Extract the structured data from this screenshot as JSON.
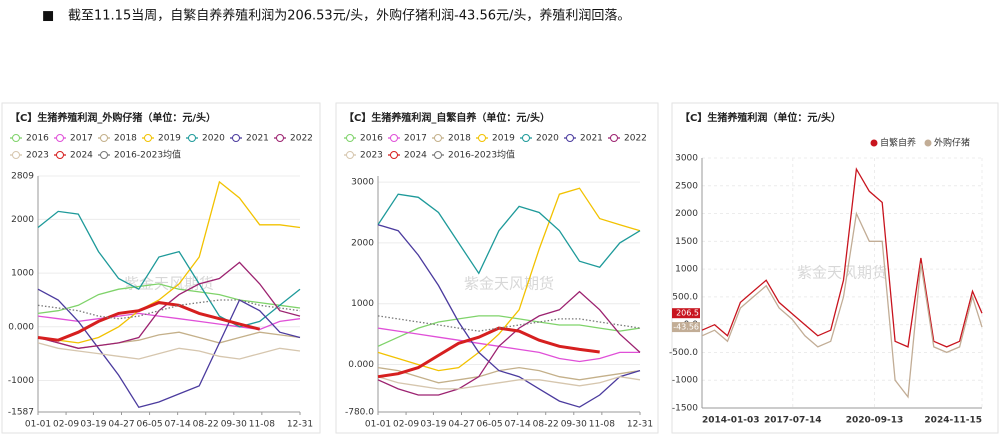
{
  "header": {
    "bullet": "■",
    "text": "截至11.15当周，自繁自养养殖利润为206.53元/头，外购仔猪利润-43.56元/头，养殖利润回落。"
  },
  "chart_data": [
    {
      "type": "line",
      "title": "【C】生猪养殖利润_外购仔猪（单位：元/头）",
      "watermark": "紫金天风期货",
      "grid": true,
      "x": [
        1,
        29,
        57,
        85,
        113,
        141,
        169,
        197,
        225,
        253,
        281,
        309,
        337,
        365
      ],
      "xlim": [
        1,
        365
      ],
      "xticks": [
        {
          "value": 1,
          "label": "01-01"
        },
        {
          "value": 40,
          "label": "02-09"
        },
        {
          "value": 78,
          "label": "03-19"
        },
        {
          "value": 117,
          "label": "04-27"
        },
        {
          "value": 156,
          "label": "06-05"
        },
        {
          "value": 195,
          "label": "07-14"
        },
        {
          "value": 234,
          "label": "08-22"
        },
        {
          "value": 273,
          "label": "09-30"
        },
        {
          "value": 312,
          "label": "11-08"
        },
        {
          "value": 365,
          "label": "12-31"
        }
      ],
      "ylim": [
        -1587,
        2809
      ],
      "yticks": [
        2809,
        2000,
        1000,
        {
          "value": 0,
          "label": "0.000"
        },
        -1000,
        -1587
      ],
      "series": [
        {
          "name": "2016",
          "color": "#7fd36a",
          "values": [
            250,
            300,
            400,
            600,
            700,
            750,
            800,
            700,
            650,
            600,
            500,
            450,
            400,
            350
          ]
        },
        {
          "name": "2017",
          "color": "#e050d8",
          "values": [
            200,
            150,
            100,
            150,
            200,
            250,
            200,
            150,
            100,
            50,
            0,
            -50,
            100,
            150
          ]
        },
        {
          "name": "2018",
          "color": "#c4b08a",
          "values": [
            -200,
            -300,
            -400,
            -350,
            -300,
            -250,
            -150,
            -100,
            -200,
            -300,
            -200,
            -100,
            -150,
            -200
          ]
        },
        {
          "name": "2019",
          "color": "#f2c200",
          "values": [
            -200,
            -250,
            -300,
            -200,
            0,
            300,
            500,
            800,
            1300,
            2700,
            2400,
            1900,
            1900,
            1850
          ]
        },
        {
          "name": "2020",
          "color": "#1e9a9a",
          "values": [
            1850,
            2150,
            2100,
            1400,
            900,
            700,
            1300,
            1400,
            800,
            200,
            0,
            100,
            400,
            700
          ]
        },
        {
          "name": "2021",
          "color": "#4b3b9e",
          "values": [
            700,
            500,
            100,
            -400,
            -900,
            -1500,
            -1400,
            -1250,
            -1100,
            -300,
            500,
            300,
            -100,
            -200
          ]
        },
        {
          "name": "2022",
          "color": "#9c2270",
          "values": [
            -200,
            -300,
            -400,
            -350,
            -300,
            -200,
            300,
            600,
            800,
            900,
            1200,
            800,
            300,
            200
          ]
        },
        {
          "name": "2023",
          "color": "#d6c6ae",
          "values": [
            -300,
            -400,
            -450,
            -500,
            -550,
            -600,
            -500,
            -400,
            -450,
            -550,
            -600,
            -500,
            -400,
            -450
          ]
        },
        {
          "name": "2024",
          "color": "#d61f1f",
          "highlight": true,
          "values": [
            -200,
            -250,
            -100,
            100,
            250,
            300,
            450,
            400,
            250,
            150,
            50,
            -44,
            null,
            null
          ]
        },
        {
          "name": "2016-2023均值",
          "color": "#777777",
          "dashed": true,
          "values": [
            400,
            350,
            300,
            200,
            150,
            200,
            300,
            400,
            450,
            500,
            500,
            400,
            350,
            300
          ]
        }
      ]
    },
    {
      "type": "line",
      "title": "【C】生猪养殖利润_自繁自养（单位：元/头）",
      "watermark": "紫金天风期货",
      "grid": true,
      "x": [
        1,
        29,
        57,
        85,
        113,
        141,
        169,
        197,
        225,
        253,
        281,
        309,
        337,
        365
      ],
      "xlim": [
        1,
        365
      ],
      "xticks": [
        {
          "value": 1,
          "label": "01-01"
        },
        {
          "value": 40,
          "label": "02-09"
        },
        {
          "value": 78,
          "label": "03-19"
        },
        {
          "value": 117,
          "label": "04-27"
        },
        {
          "value": 156,
          "label": "06-05"
        },
        {
          "value": 195,
          "label": "07-14"
        },
        {
          "value": 234,
          "label": "08-22"
        },
        {
          "value": 273,
          "label": "09-30"
        },
        {
          "value": 312,
          "label": "11-08"
        },
        {
          "value": 365,
          "label": "12-31"
        }
      ],
      "ylim": [
        -780,
        3100
      ],
      "yticks": [
        3000,
        2000,
        1000,
        {
          "value": 0,
          "label": "0.000"
        },
        {
          "value": -780,
          "label": "-780.0"
        }
      ],
      "series": [
        {
          "name": "2016",
          "color": "#7fd36a",
          "values": [
            300,
            450,
            600,
            700,
            750,
            800,
            800,
            750,
            700,
            650,
            650,
            600,
            550,
            600
          ]
        },
        {
          "name": "2017",
          "color": "#e050d8",
          "values": [
            600,
            550,
            500,
            450,
            400,
            350,
            300,
            250,
            200,
            100,
            50,
            100,
            200,
            200
          ]
        },
        {
          "name": "2018",
          "color": "#c4b08a",
          "values": [
            -50,
            -100,
            -200,
            -300,
            -250,
            -200,
            -100,
            -50,
            -100,
            -200,
            -250,
            -200,
            -150,
            -100
          ]
        },
        {
          "name": "2019",
          "color": "#f2c200",
          "values": [
            200,
            100,
            0,
            -100,
            -50,
            200,
            500,
            900,
            1900,
            2800,
            2900,
            2400,
            2300,
            2200
          ]
        },
        {
          "name": "2020",
          "color": "#1e9a9a",
          "values": [
            2300,
            2800,
            2750,
            2500,
            2000,
            1500,
            2200,
            2600,
            2500,
            2200,
            1700,
            1600,
            2000,
            2200
          ]
        },
        {
          "name": "2021",
          "color": "#4b3b9e",
          "values": [
            2300,
            2200,
            1800,
            1300,
            700,
            200,
            -100,
            -200,
            -400,
            -600,
            -700,
            -500,
            -200,
            -100
          ]
        },
        {
          "name": "2022",
          "color": "#9c2270",
          "values": [
            -250,
            -400,
            -500,
            -500,
            -400,
            -200,
            300,
            600,
            800,
            900,
            1200,
            900,
            500,
            200
          ]
        },
        {
          "name": "2023",
          "color": "#d6c6ae",
          "values": [
            -200,
            -300,
            -350,
            -400,
            -400,
            -350,
            -300,
            -250,
            -250,
            -300,
            -350,
            -300,
            -200,
            -250
          ]
        },
        {
          "name": "2024",
          "color": "#d61f1f",
          "highlight": true,
          "values": [
            -200,
            -150,
            -50,
            150,
            350,
            450,
            600,
            550,
            400,
            300,
            250,
            207,
            null,
            null
          ]
        },
        {
          "name": "2016-2023均值",
          "color": "#777777",
          "dashed": true,
          "values": [
            800,
            750,
            700,
            650,
            600,
            550,
            600,
            650,
            700,
            750,
            750,
            700,
            650,
            600
          ]
        }
      ]
    },
    {
      "type": "line",
      "title": "【C】生猪养殖利润（单位：元/头）",
      "watermark": "紫金天风期货",
      "grid": true,
      "legend": "top",
      "vgrid": true,
      "x": [
        2014.01,
        2014.5,
        2015.0,
        2015.5,
        2016.0,
        2016.5,
        2017.0,
        2017.5,
        2018.0,
        2018.5,
        2019.0,
        2019.5,
        2020.0,
        2020.5,
        2021.0,
        2021.5,
        2022.0,
        2022.5,
        2023.0,
        2023.5,
        2024.0,
        2024.5,
        2024.87
      ],
      "xlim": [
        2014.01,
        2024.87
      ],
      "xticks": [
        {
          "value": 2014.01,
          "label": "2014-01-03"
        },
        {
          "value": 2017.53,
          "label": "2017-07-14"
        },
        {
          "value": 2020.7,
          "label": "2020-09-13"
        },
        {
          "value": 2024.87,
          "label": "2024-11-15"
        }
      ],
      "ylim": [
        -1500,
        3000
      ],
      "yticks": [
        3000,
        2500,
        2000,
        1500,
        1000,
        {
          "value": 500,
          "label": "500.0"
        },
        {
          "value": 0,
          "label": "0.0"
        },
        {
          "value": -500,
          "label": "-500.0"
        },
        -1000,
        -1500
      ],
      "series": [
        {
          "name": "自繁自养",
          "color": "#c8141e",
          "values": [
            -100,
            0,
            -200,
            400,
            600,
            800,
            400,
            200,
            0,
            -200,
            -100,
            800,
            2800,
            2400,
            2200,
            -300,
            -400,
            1200,
            -300,
            -400,
            -300,
            600,
            206.5
          ],
          "value_labels": [
            null,
            null,
            null,
            null,
            null,
            null,
            null,
            null,
            null,
            null,
            null,
            null,
            null,
            null,
            null,
            null,
            null,
            null,
            null,
            null,
            null,
            null,
            "206.5"
          ]
        },
        {
          "name": "外购仔猪",
          "color": "#c2ad96",
          "values": [
            -200,
            -100,
            -300,
            300,
            500,
            700,
            300,
            100,
            -200,
            -400,
            -300,
            500,
            2000,
            1500,
            1500,
            -1000,
            -1300,
            1100,
            -400,
            -500,
            -400,
            500,
            -43.56
          ],
          "value_labels": [
            null,
            null,
            null,
            null,
            null,
            null,
            null,
            null,
            null,
            null,
            null,
            null,
            null,
            null,
            null,
            null,
            null,
            null,
            null,
            null,
            null,
            null,
            "-43.56"
          ]
        }
      ]
    }
  ]
}
